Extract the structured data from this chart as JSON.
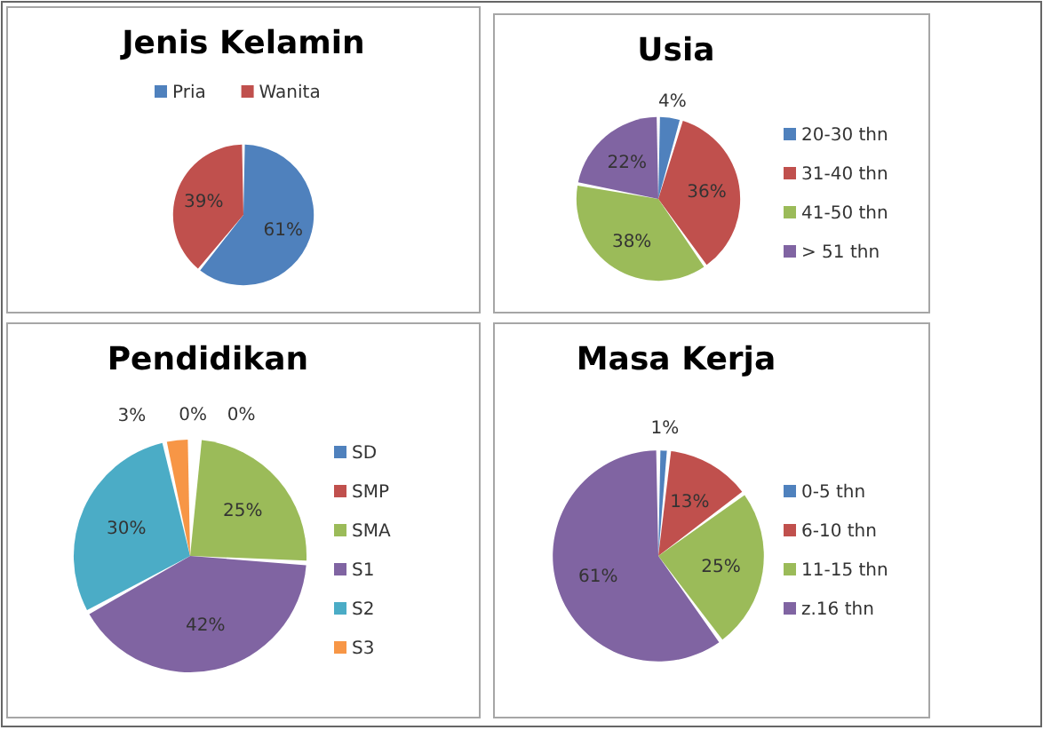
{
  "chart_data": [
    {
      "type": "pie",
      "title": "Jenis Kelamin",
      "categories": [
        "Pria",
        "Wanita"
      ],
      "values": [
        61,
        39
      ],
      "value_labels": [
        "61%",
        "39%"
      ],
      "colors": [
        "#4f81bd",
        "#c0504d"
      ],
      "legend": "top"
    },
    {
      "type": "pie",
      "title": "Usia",
      "categories": [
        "20-30 thn",
        "31-40 thn",
        "41-50 thn",
        "> 51 thn"
      ],
      "values": [
        4,
        36,
        38,
        22
      ],
      "value_labels": [
        "4%",
        "36%",
        "38%",
        "22%"
      ],
      "colors": [
        "#4f81bd",
        "#c0504d",
        "#9bbb59",
        "#8064a2"
      ],
      "legend": "right"
    },
    {
      "type": "pie",
      "title": "Pendidikan",
      "categories": [
        "SD",
        "SMP",
        "SMA",
        "S1",
        "S2",
        "S3"
      ],
      "values": [
        0,
        0,
        25,
        42,
        30,
        3
      ],
      "value_labels": [
        "0%",
        "0%",
        "25%",
        "42%",
        "30%",
        "3%"
      ],
      "colors": [
        "#4f81bd",
        "#c0504d",
        "#9bbb59",
        "#8064a2",
        "#4bacc6",
        "#f79646"
      ],
      "legend": "right"
    },
    {
      "type": "pie",
      "title": "Masa Kerja",
      "categories": [
        "0-5 thn",
        "6-10 thn",
        "11-15 thn",
        "z.16 thn"
      ],
      "values": [
        1,
        13,
        25,
        61
      ],
      "value_labels": [
        "1%",
        "13%",
        "25%",
        "61%"
      ],
      "colors": [
        "#4f81bd",
        "#c0504d",
        "#9bbb59",
        "#8064a2"
      ],
      "legend": "right"
    }
  ]
}
